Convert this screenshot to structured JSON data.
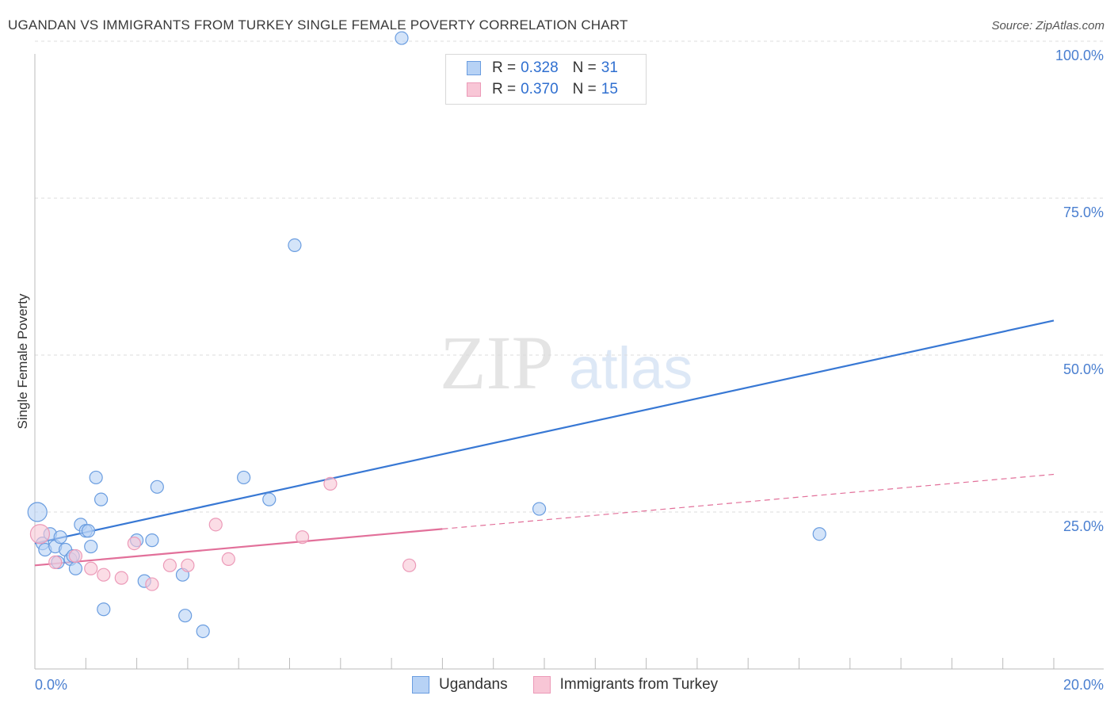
{
  "title": "UGANDAN VS IMMIGRANTS FROM TURKEY SINGLE FEMALE POVERTY CORRELATION CHART",
  "source": "Source: ZipAtlas.com",
  "watermark": {
    "zip": "ZIP",
    "atlas": "atlas"
  },
  "colors": {
    "blue": "#3878d4",
    "blue_fill": "#b7d2f5",
    "blue_stroke": "#6a9de0",
    "pink": "#e2709a",
    "pink_fill": "#f8c6d6",
    "pink_stroke": "#ec9ab8",
    "grid": "#dddddd",
    "tick_text": "#4a7fd0"
  },
  "legend": {
    "rows": [
      {
        "r_label": "R =",
        "r_value": "0.328",
        "n_label": "N =",
        "n_value": "31"
      },
      {
        "r_label": "R =",
        "r_value": "0.370",
        "n_label": "N =",
        "n_value": "15"
      }
    ]
  },
  "bottom_legend": [
    "Ugandans",
    "Immigrants from Turkey"
  ],
  "chart_data": {
    "type": "scatter",
    "title": "UGANDAN VS IMMIGRANTS FROM TURKEY SINGLE FEMALE POVERTY CORRELATION CHART",
    "xlabel": "",
    "ylabel": "Single Female Poverty",
    "xlim": [
      0,
      20
    ],
    "ylim": [
      0,
      100
    ],
    "x_tick_labels": [
      "0.0%",
      "20.0%"
    ],
    "y_ticks": [
      25,
      50,
      75,
      100
    ],
    "y_tick_labels": [
      "25.0%",
      "50.0%",
      "75.0%",
      "100.0%"
    ],
    "series": [
      {
        "name": "Ugandans",
        "points": [
          [
            0.05,
            25.0
          ],
          [
            0.15,
            20.0
          ],
          [
            0.2,
            19.0
          ],
          [
            0.3,
            21.5
          ],
          [
            0.4,
            19.5
          ],
          [
            0.45,
            17.0
          ],
          [
            0.5,
            21.0
          ],
          [
            0.6,
            19.0
          ],
          [
            0.7,
            17.5
          ],
          [
            0.75,
            18.0
          ],
          [
            0.8,
            16.0
          ],
          [
            0.9,
            23.0
          ],
          [
            1.0,
            22.0
          ],
          [
            1.05,
            22.0
          ],
          [
            1.1,
            19.5
          ],
          [
            1.2,
            30.5
          ],
          [
            1.3,
            27.0
          ],
          [
            1.35,
            9.5
          ],
          [
            2.0,
            20.5
          ],
          [
            2.15,
            14.0
          ],
          [
            2.3,
            20.5
          ],
          [
            2.4,
            29.0
          ],
          [
            2.9,
            15.0
          ],
          [
            2.95,
            8.5
          ],
          [
            3.3,
            6.0
          ],
          [
            4.1,
            30.5
          ],
          [
            4.6,
            27.0
          ],
          [
            5.1,
            67.5
          ],
          [
            7.2,
            100.5
          ],
          [
            9.9,
            25.5
          ],
          [
            15.4,
            21.5
          ]
        ],
        "trend": {
          "x": [
            0,
            20
          ],
          "y": [
            20.0,
            55.5
          ],
          "style": "solid"
        }
      },
      {
        "name": "Immigrants from Turkey",
        "points": [
          [
            0.1,
            21.5
          ],
          [
            0.4,
            17.0
          ],
          [
            0.8,
            18.0
          ],
          [
            1.1,
            16.0
          ],
          [
            1.35,
            15.0
          ],
          [
            1.7,
            14.5
          ],
          [
            1.95,
            20.0
          ],
          [
            2.3,
            13.5
          ],
          [
            2.65,
            16.5
          ],
          [
            3.0,
            16.5
          ],
          [
            3.55,
            23.0
          ],
          [
            3.8,
            17.5
          ],
          [
            5.25,
            21.0
          ],
          [
            5.8,
            29.5
          ],
          [
            7.35,
            16.5
          ]
        ],
        "trend": {
          "x": [
            0,
            20
          ],
          "y": [
            16.5,
            31.0
          ],
          "solid_until_x": 8.0,
          "style": "solid-then-dashed"
        }
      }
    ]
  }
}
